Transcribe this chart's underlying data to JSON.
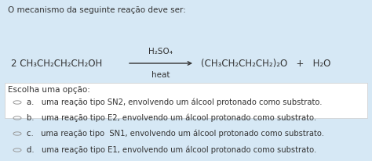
{
  "bg_color": "#d6e8f5",
  "white_box_color": "#ffffff",
  "text_color": "#333333",
  "title": "O mecanismo da seguinte reação deve ser:",
  "reaction_left": "2 CH₃CH₂CH₂CH₂OH",
  "reaction_right": "(CH₃CH₂CH₂CH₂)₂O   +   H₂O",
  "catalyst_above": "H₂SO₄",
  "catalyst_below": "heat",
  "choose_label": "Escolha uma opção:",
  "options": [
    "a.   uma reação tipo SN2, envolvendo um álcool protonado como substrato.",
    "b.   uma reação tipo E2, envolvendo um álcool protonado como substrato.",
    "c.   uma reação tipo  SN1, envolvendo um álcool protonado como substrato.",
    "d.   uma reação tipo E1, envolvendo um álcool protonado como substrato."
  ],
  "font_size_title": 7.5,
  "font_size_reaction": 8.5,
  "font_size_catalyst": 7.5,
  "font_size_options": 7.2,
  "font_size_choose": 7.5,
  "fig_width": 4.74,
  "fig_height": 2.06
}
